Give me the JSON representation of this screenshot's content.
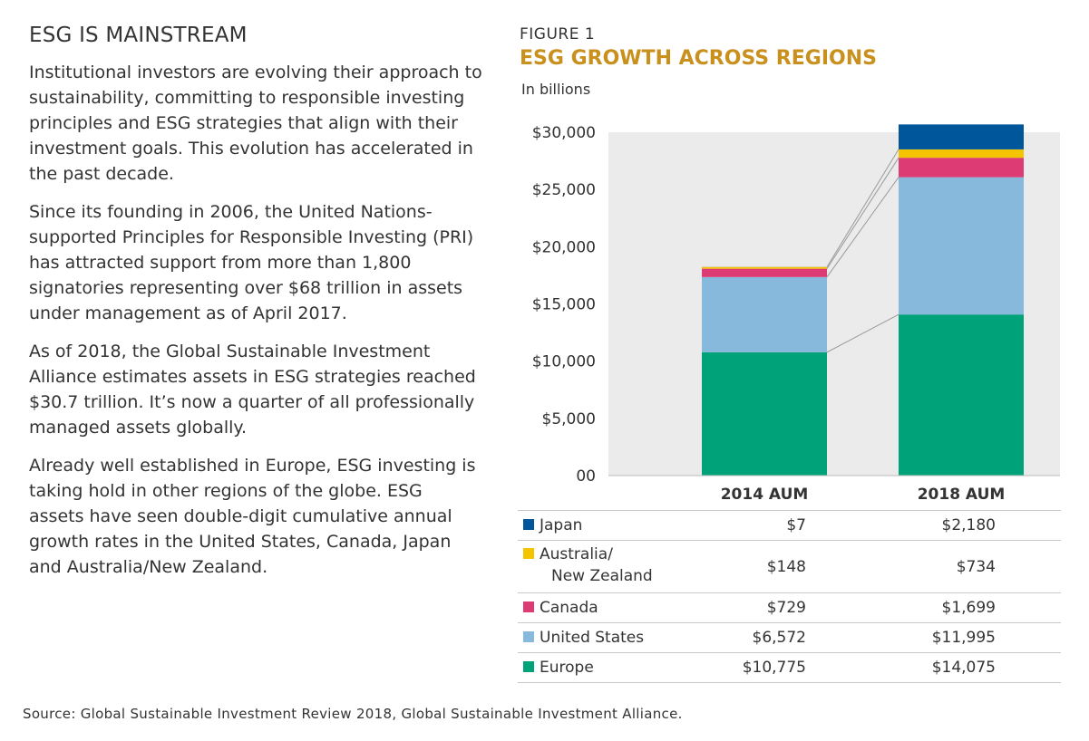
{
  "left": {
    "heading": "ESG IS MAINSTREAM",
    "paragraphs": [
      "Institutional investors are evolving their approach to sustainability, committing to responsible investing principles and ESG strategies that align with their investment goals. This evolution has accelerated in the past decade.",
      "Since its founding in 2006, the United Nations-supported Principles for Responsible Investing (PRI) has attracted support from more than 1,800 signatories representing over $68 trillion in assets under management as of April 2017.",
      "As of 2018, the Global Sustainable Investment Alliance estimates assets in ESG strategies reached $30.7 trillion. It’s now a quarter of all professionally managed assets globally.",
      "Already well established in Europe, ESG investing is taking hold in other regions of the globe. ESG assets have seen double-digit cumulative annual growth rates in the United States, Canada, Japan and Australia/New Zealand."
    ]
  },
  "figure": {
    "label": "FIGURE 1",
    "title": "ESG GROWTH ACROSS REGIONS",
    "units": "In billions"
  },
  "chart_data": {
    "type": "bar",
    "stacked": true,
    "categories": [
      "2014 AUM",
      "2018 AUM"
    ],
    "ylim": [
      0,
      30000
    ],
    "yticks": [
      0,
      5000,
      10000,
      15000,
      20000,
      25000,
      30000
    ],
    "ytick_labels": [
      "00",
      "$5,000",
      "$10,000",
      "$15,000",
      "$20,000",
      "$25,000",
      "$30,000"
    ],
    "series": [
      {
        "name": "Europe",
        "color": "#00a279",
        "values": [
          10775,
          14075
        ]
      },
      {
        "name": "United States",
        "color": "#86b9dc",
        "values": [
          6572,
          11995
        ]
      },
      {
        "name": "Canada",
        "color": "#dc3c73",
        "values": [
          729,
          1699
        ]
      },
      {
        "name": "Australia/ New Zealand",
        "color": "#f5c400",
        "values": [
          148,
          734
        ]
      },
      {
        "name": "Japan",
        "color": "#00569b",
        "values": [
          7,
          2180
        ]
      }
    ]
  },
  "legend_table": [
    {
      "label": "Japan",
      "label2": "",
      "color": "#00569b",
      "v2014": "$7",
      "v2018": "$2,180"
    },
    {
      "label": "Australia/",
      "label2": "New Zealand",
      "color": "#f5c400",
      "v2014": "$148",
      "v2018": "$734"
    },
    {
      "label": "Canada",
      "label2": "",
      "color": "#dc3c73",
      "v2014": "$729",
      "v2018": "$1,699"
    },
    {
      "label": "United States",
      "label2": "",
      "color": "#86b9dc",
      "v2014": "$6,572",
      "v2018": "$11,995"
    },
    {
      "label": "Europe",
      "label2": "",
      "color": "#00a279",
      "v2014": "$10,775",
      "v2018": "$14,075"
    }
  ],
  "source": "Source: Global Sustainable Investment Review 2018, Global Sustainable Investment Alliance."
}
